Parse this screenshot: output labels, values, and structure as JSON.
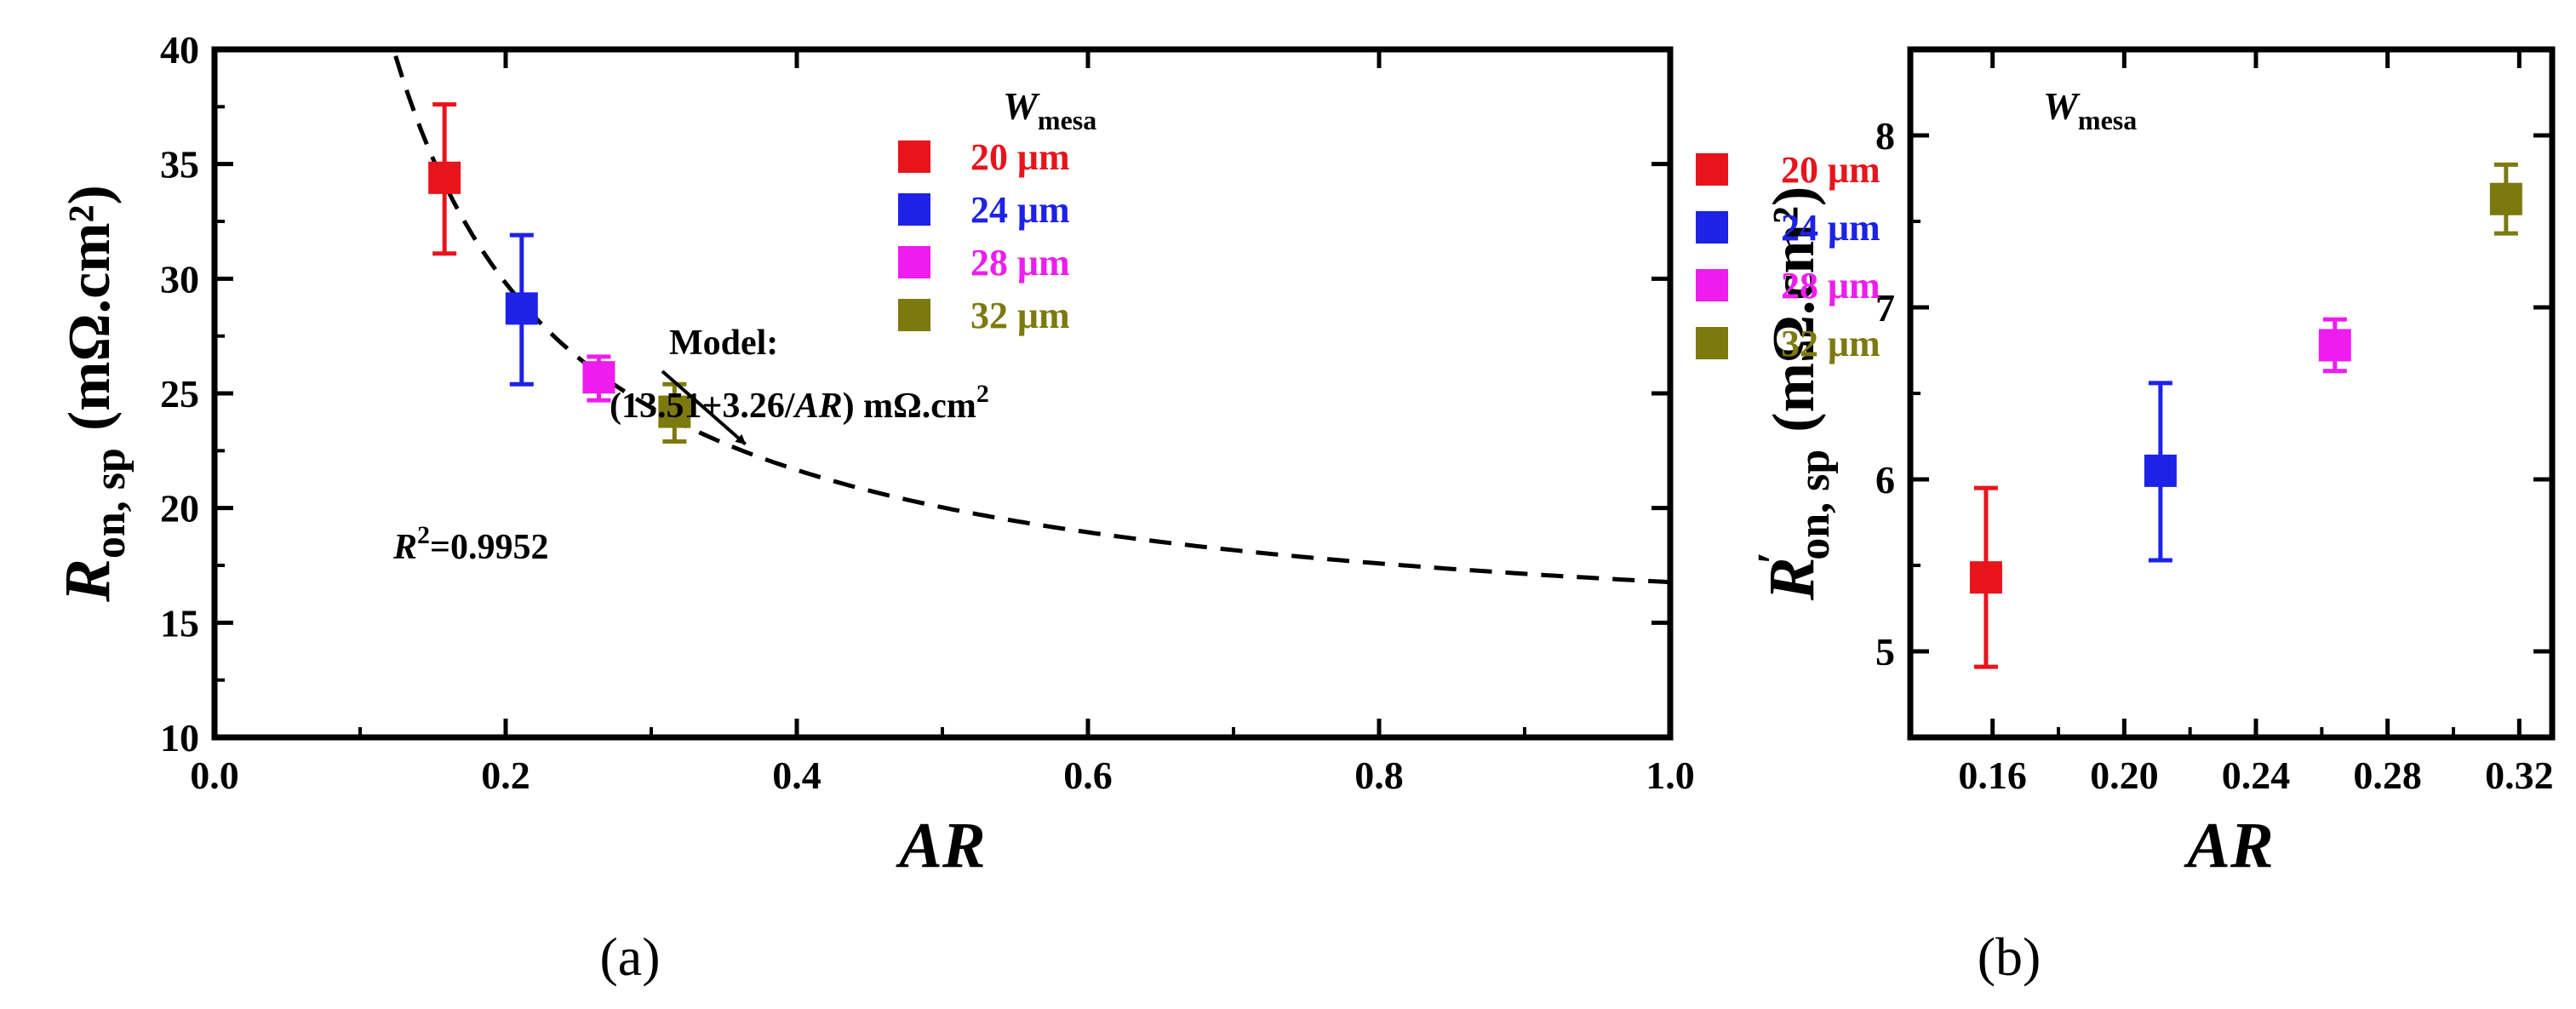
{
  "figure": {
    "panel_labels": [
      "(a)",
      "(b)"
    ]
  },
  "chart_data": [
    {
      "type": "scatter",
      "panel": "(a)",
      "xlabel": "AR",
      "ylabel_main": "R",
      "ylabel_sub": "on, sp",
      "ylabel_unit": "(mΩ.cm²)",
      "xlim": [
        0.0,
        1.0
      ],
      "ylim": [
        10,
        40
      ],
      "xticks": [
        0.0,
        0.2,
        0.4,
        0.6,
        0.8,
        1.0
      ],
      "xtick_labels": [
        "0.0",
        "0.2",
        "0.4",
        "0.6",
        "0.8",
        "1.0"
      ],
      "yticks": [
        10,
        15,
        20,
        25,
        30,
        35,
        40
      ],
      "ytick_labels": [
        "10",
        "15",
        "20",
        "25",
        "30",
        "35",
        "40"
      ],
      "legend": {
        "title_main": "W",
        "title_sub": "mesa",
        "position": "top-right"
      },
      "series": [
        {
          "name": "20 μm",
          "color": "#e8141c",
          "x": 0.158,
          "y": 34.4,
          "yerr_low": 31.1,
          "yerr_high": 37.6
        },
        {
          "name": "24 μm",
          "color": "#1d22e6",
          "x": 0.211,
          "y": 28.7,
          "yerr_low": 25.4,
          "yerr_high": 31.9
        },
        {
          "name": "28 μm",
          "color": "#ee1cee",
          "x": 0.264,
          "y": 25.7,
          "yerr_low": 24.7,
          "yerr_high": 26.6
        },
        {
          "name": "32 μm",
          "color": "#7c7a0e",
          "x": 0.316,
          "y": 24.2,
          "yerr_low": 22.9,
          "yerr_high": 25.4
        }
      ],
      "model": {
        "a": 13.51,
        "b": 3.26,
        "x_range": [
          0.12,
          1.0
        ],
        "label_line1": "Model:",
        "label_line2_prefix": "(13.51+3.26/",
        "label_line2_ar": "AR",
        "label_line2_suffix": ") mΩ.cm",
        "label_line2_sup": "2",
        "arrow_target_x": 0.36
      },
      "r2": {
        "r": "R",
        "sup": "2",
        "value": "=0.9952"
      }
    },
    {
      "type": "scatter",
      "panel": "(b)",
      "xlabel": "AR",
      "ylabel_main": "R",
      "ylabel_prime": "′",
      "ylabel_sub": "on, sp",
      "ylabel_unit": "(mΩ.cm²)",
      "xlim": [
        0.135,
        0.33
      ],
      "ylim": [
        4.5,
        8.5
      ],
      "xticks": [
        0.16,
        0.2,
        0.24,
        0.28,
        0.32
      ],
      "xtick_labels": [
        "0.16",
        "0.20",
        "0.24",
        "0.28",
        "0.32"
      ],
      "yticks": [
        5,
        6,
        7,
        8
      ],
      "ytick_labels": [
        "5",
        "6",
        "7",
        "8"
      ],
      "legend": {
        "title_main": "W",
        "title_sub": "mesa",
        "position": "top-left"
      },
      "series": [
        {
          "name": "20 μm",
          "color": "#e8141c",
          "x": 0.158,
          "y": 5.43,
          "yerr_low": 4.91,
          "yerr_high": 5.95
        },
        {
          "name": "24 μm",
          "color": "#1d22e6",
          "x": 0.211,
          "y": 6.05,
          "yerr_low": 5.53,
          "yerr_high": 6.56
        },
        {
          "name": "28 μm",
          "color": "#ee1cee",
          "x": 0.264,
          "y": 6.78,
          "yerr_low": 6.63,
          "yerr_high": 6.93
        },
        {
          "name": "32 μm",
          "color": "#7c7a0e",
          "x": 0.316,
          "y": 7.63,
          "yerr_low": 7.43,
          "yerr_high": 7.83
        }
      ]
    }
  ]
}
